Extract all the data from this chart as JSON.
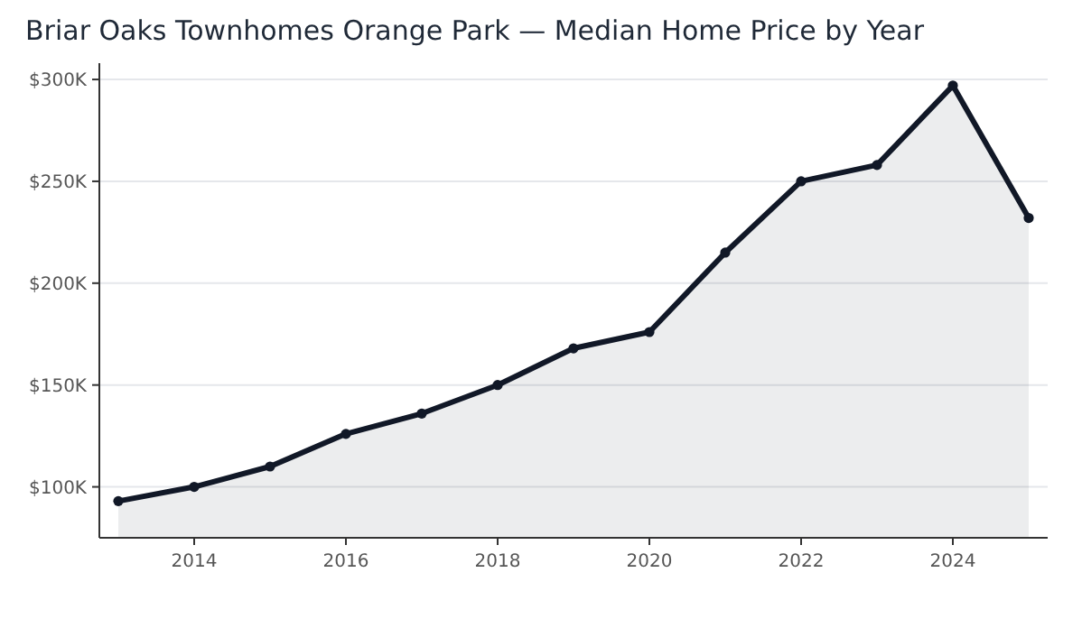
{
  "chart_data": {
    "type": "area",
    "title": "Briar Oaks Townhomes Orange Park — Median Home Price by Year",
    "x": [
      2013,
      2014,
      2015,
      2016,
      2017,
      2018,
      2019,
      2020,
      2021,
      2022,
      2023,
      2024,
      2025
    ],
    "series": [
      {
        "color": "#111827",
        "values": [
          93,
          100,
          110,
          126,
          136,
          150,
          168,
          176,
          215,
          250,
          258,
          297,
          232
        ]
      }
    ],
    "xlim": [
      2012.75,
      2025.25
    ],
    "xticks": [
      2014,
      2016,
      2018,
      2020,
      2022,
      2024
    ],
    "ylim": [
      75,
      308
    ],
    "yticks": [
      {
        "value": 100,
        "label": "$100K"
      },
      {
        "value": 150,
        "label": "$150K"
      },
      {
        "value": 200,
        "label": "$200K"
      },
      {
        "value": 250,
        "label": "$250K"
      },
      {
        "value": 300,
        "label": "$300K"
      }
    ],
    "grid": "y",
    "marker": "circle",
    "line_style": "solid"
  }
}
